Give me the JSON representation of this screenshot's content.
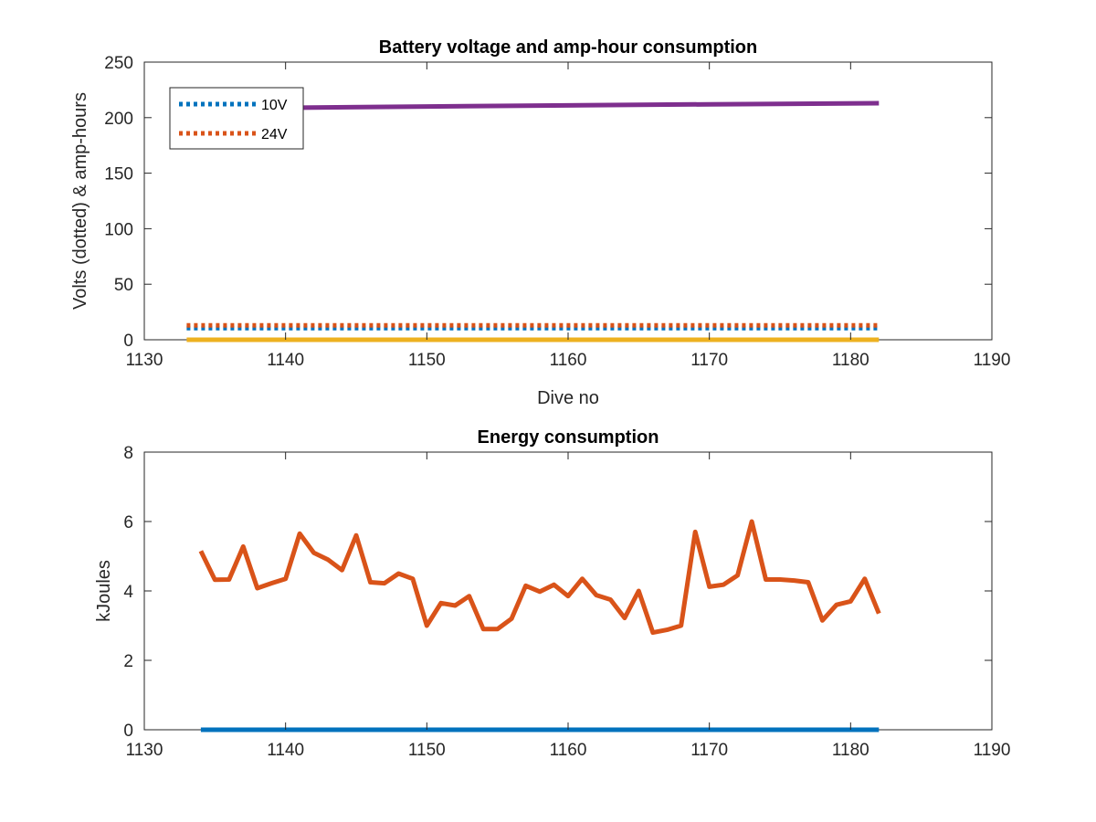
{
  "chart_data": [
    {
      "type": "line",
      "title": "Battery voltage and amp-hour consumption",
      "xlabel": "Dive no",
      "ylabel": "Volts (dotted) & amp-hours",
      "xlim": [
        1130,
        1190
      ],
      "ylim": [
        0,
        250
      ],
      "xticks": [
        1130,
        1140,
        1150,
        1160,
        1170,
        1180,
        1190
      ],
      "yticks": [
        0,
        50,
        100,
        150,
        200,
        250
      ],
      "grid": false,
      "legend_position": "top-left",
      "series": [
        {
          "name": "10V",
          "color": "#0072BD",
          "style": "dotted",
          "in_legend": true,
          "x": [
            1133,
            1182
          ],
          "y": [
            10.5,
            10.5
          ]
        },
        {
          "name": "24V",
          "color": "#D95319",
          "style": "dotted",
          "in_legend": true,
          "x": [
            1133,
            1182
          ],
          "y": [
            13,
            13
          ]
        },
        {
          "color": "#7E2F8E",
          "style": "solid",
          "in_legend": false,
          "x": [
            1134,
            1141,
            1150,
            1160,
            1170,
            1182
          ],
          "y": [
            208,
            209,
            210,
            211,
            212,
            213
          ]
        },
        {
          "color": "#EDB120",
          "style": "solid",
          "in_legend": false,
          "x": [
            1133,
            1182
          ],
          "y": [
            0,
            0
          ]
        }
      ]
    },
    {
      "type": "line",
      "title": "Energy consumption",
      "xlabel": "",
      "ylabel": "kJoules",
      "xlim": [
        1130,
        1190
      ],
      "ylim": [
        0,
        8
      ],
      "xticks": [
        1130,
        1140,
        1150,
        1160,
        1170,
        1180,
        1190
      ],
      "yticks": [
        0,
        2,
        4,
        6,
        8
      ],
      "grid": false,
      "series": [
        {
          "color": "#D95319",
          "style": "solid",
          "x": [
            1134,
            1135,
            1136,
            1137,
            1138,
            1139,
            1140,
            1141,
            1142,
            1143,
            1144,
            1145,
            1146,
            1147,
            1148,
            1149,
            1150,
            1151,
            1152,
            1153,
            1154,
            1155,
            1156,
            1157,
            1158,
            1159,
            1160,
            1161,
            1162,
            1163,
            1164,
            1165,
            1166,
            1167,
            1168,
            1169,
            1170,
            1171,
            1172,
            1173,
            1174,
            1175,
            1176,
            1177,
            1178,
            1179,
            1180,
            1181,
            1182
          ],
          "y": [
            5.15,
            4.32,
            4.33,
            5.28,
            4.08,
            4.22,
            4.35,
            5.65,
            5.1,
            4.9,
            4.6,
            5.6,
            4.25,
            4.22,
            4.5,
            4.35,
            3.0,
            3.65,
            3.58,
            3.85,
            2.9,
            2.9,
            3.2,
            4.15,
            3.98,
            4.18,
            3.85,
            4.35,
            3.88,
            3.75,
            3.22,
            4.0,
            2.8,
            2.88,
            3.0,
            5.7,
            4.12,
            4.18,
            4.45,
            6.0,
            4.33,
            4.33,
            4.3,
            4.25,
            3.15,
            3.6,
            3.7,
            4.35,
            3.35
          ]
        },
        {
          "color": "#0072BD",
          "style": "solid",
          "x": [
            1134,
            1182
          ],
          "y": [
            0,
            0
          ]
        }
      ]
    }
  ]
}
